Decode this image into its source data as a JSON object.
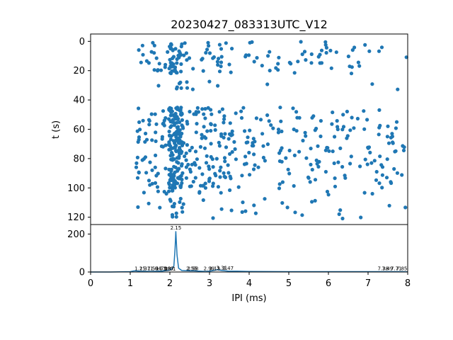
{
  "title": "20230427_083313UTC_V12",
  "colors": {
    "series": "#1f77b4",
    "axes": "#000000"
  },
  "chart_data": [
    {
      "type": "scatter",
      "ylabel": "t (s)",
      "xlim": [
        0,
        8
      ],
      "ylim": [
        125,
        -5
      ],
      "y_inverted": true,
      "yticks": [
        0,
        20,
        40,
        60,
        80,
        100,
        120
      ],
      "marker": "dot",
      "grid": false,
      "bands": [
        {
          "t_range": [
            0,
            22
          ],
          "density": 0.7
        },
        {
          "t_range": [
            27,
            33
          ],
          "density": 0.25
        },
        {
          "t_range": [
            45,
            62
          ],
          "density": 1.0
        },
        {
          "t_range": [
            62,
            100
          ],
          "density": 1.0
        },
        {
          "t_range": [
            100,
            121
          ],
          "density": 0.3
        }
      ],
      "hot_column_ipi": 2.15
    },
    {
      "type": "line",
      "xlabel": "IPI (ms)",
      "xlim": [
        0,
        8
      ],
      "ylim": [
        0,
        250
      ],
      "xticks": [
        0,
        1,
        2,
        3,
        4,
        5,
        6,
        7,
        8
      ],
      "yticks": [
        0,
        200
      ],
      "series": [
        {
          "x": [
            0,
            0.5,
            1.0,
            1.1,
            1.25,
            1.5,
            1.8,
            2.0,
            2.05,
            2.1,
            2.13,
            2.15,
            2.18,
            2.22,
            2.3,
            2.5,
            2.6,
            2.9,
            3.0,
            3.2,
            3.31,
            3.47,
            3.7,
            4.0,
            5.0,
            6.0,
            7.0,
            7.5,
            7.85,
            8.0
          ],
          "y": [
            0,
            0,
            2,
            6,
            4,
            3,
            5,
            10,
            18,
            30,
            120,
            215,
            90,
            20,
            8,
            6,
            6,
            3,
            4,
            12,
            8,
            5,
            4,
            3,
            2,
            2,
            2,
            2,
            2,
            1
          ]
        }
      ],
      "peak_labels": [
        {
          "x": 1.25,
          "y": 5,
          "text": "1.25"
        },
        {
          "x": 1.37,
          "y": 5,
          "text": "1.37"
        },
        {
          "x": 1.57,
          "y": 5,
          "text": "1.57"
        },
        {
          "x": 1.64,
          "y": 5,
          "text": "1.64"
        },
        {
          "x": 1.79,
          "y": 5,
          "text": "1.79"
        },
        {
          "x": 1.88,
          "y": 5,
          "text": "1.88"
        },
        {
          "x": 1.97,
          "y": 5,
          "text": "1.97"
        },
        {
          "x": 2.01,
          "y": 4,
          "text": "2.01"
        },
        {
          "x": 2.15,
          "y": 220,
          "text": "2.15"
        },
        {
          "x": 2.55,
          "y": 5,
          "text": "2.55"
        },
        {
          "x": 2.58,
          "y": 5,
          "text": "2.58"
        },
        {
          "x": 2.99,
          "y": 5,
          "text": "2.99"
        },
        {
          "x": 3.13,
          "y": 5,
          "text": "3.13"
        },
        {
          "x": 3.31,
          "y": 10,
          "text": "3.31"
        },
        {
          "x": 3.47,
          "y": 7,
          "text": "3.47"
        },
        {
          "x": 7.38,
          "y": 5,
          "text": "7.38"
        },
        {
          "x": 7.49,
          "y": 5,
          "text": "7.49"
        },
        {
          "x": 7.71,
          "y": 5,
          "text": "7.71"
        },
        {
          "x": 7.85,
          "y": 5,
          "text": "7.85"
        }
      ]
    }
  ]
}
